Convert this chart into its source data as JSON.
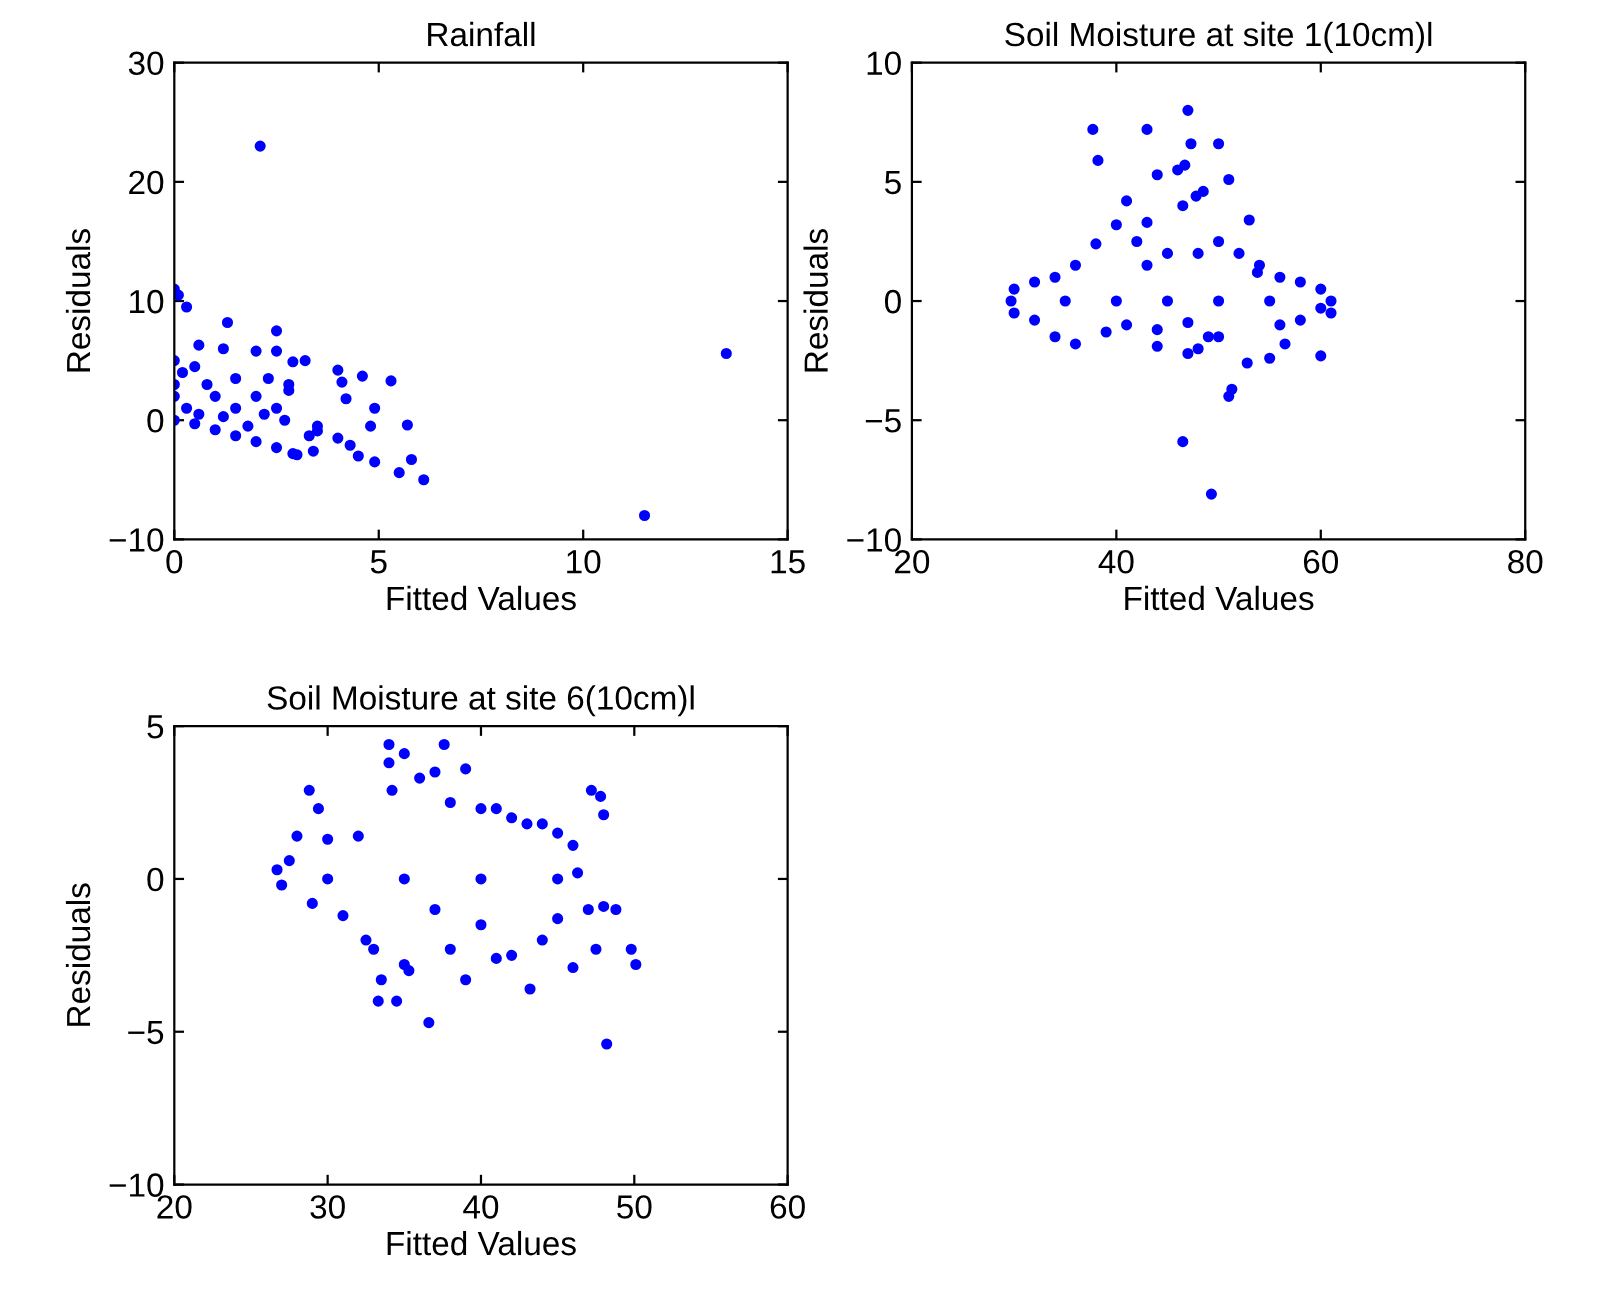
{
  "chart_data": [
    {
      "type": "scatter",
      "title": "Rainfall",
      "xlabel": "Fitted Values",
      "ylabel": "Residuals",
      "xlim": [
        0,
        15
      ],
      "ylim": [
        -10,
        30
      ],
      "xticks": [
        0,
        5,
        10,
        15
      ],
      "yticks": [
        -10,
        0,
        10,
        20,
        30
      ],
      "grid": false,
      "legend": false,
      "marker": "circle",
      "series": [
        {
          "color": "#0000ff",
          "x": [
            2.1,
            13.5,
            11.5,
            0,
            0.1,
            0.3,
            1.3,
            2.5,
            0.6,
            1.2,
            2,
            2.5,
            3.2,
            2.9,
            4,
            4.6,
            5.3,
            4.1,
            4.2,
            4.9,
            5.7,
            4.8,
            3.5,
            4,
            4.3,
            4.5,
            4.9,
            5.5,
            5.8,
            6.1,
            3.3,
            3.5,
            3,
            3.4,
            0,
            0.5,
            1,
            1.5,
            2,
            2.5,
            2.9,
            0,
            0,
            0,
            0.2,
            0.5,
            0.8,
            1,
            1.5,
            1.5,
            2,
            2.5,
            2.8,
            2.7,
            2.2,
            1.8,
            0.3,
            0.6,
            1.2,
            2.3,
            2.8
          ],
          "values": [
            23,
            5.6,
            -8,
            11,
            10.5,
            9.5,
            8.2,
            7.5,
            6.3,
            6,
            5.8,
            5.8,
            5,
            4.9,
            4.2,
            3.7,
            3.3,
            3.2,
            1.8,
            1,
            -0.4,
            -0.5,
            -0.5,
            -1.5,
            -2.1,
            -3,
            -3.5,
            -4.4,
            -3.3,
            -5,
            -1.3,
            -0.9,
            -2.9,
            -2.6,
            0,
            -0.3,
            -0.8,
            -1.3,
            -1.8,
            -2.3,
            -2.8,
            5,
            3,
            2,
            4,
            4.5,
            3,
            2,
            3.5,
            1,
            2,
            1,
            2.5,
            0,
            0.5,
            -0.5,
            1,
            0.5,
            0.3,
            3.5,
            3
          ]
        }
      ]
    },
    {
      "type": "scatter",
      "title": "Soil Moisture at site 1(10cm)l",
      "xlabel": "Fitted Values",
      "ylabel": "Residuals",
      "xlim": [
        20,
        80
      ],
      "ylim": [
        -10,
        10
      ],
      "xticks": [
        20,
        40,
        60,
        80
      ],
      "yticks": [
        -10,
        -5,
        0,
        5,
        10
      ],
      "grid": false,
      "legend": false,
      "marker": "circle",
      "series": [
        {
          "color": "#0000ff",
          "x": [
            29.7,
            30,
            30,
            32,
            32,
            34,
            34,
            36,
            36,
            37.7,
            38.2,
            38,
            39,
            40,
            41,
            41,
            43,
            43,
            44,
            44,
            46,
            46.5,
            47,
            47.3,
            46.7,
            47.8,
            48.5,
            47,
            47,
            46.5,
            48,
            49,
            49.3,
            50,
            51,
            51,
            51.3,
            53,
            52.8,
            53.8,
            55,
            56,
            58,
            60,
            61,
            60,
            58,
            56,
            54,
            52,
            50,
            48,
            45,
            43,
            42,
            44,
            50,
            56.5,
            60,
            61,
            55,
            50,
            45,
            40,
            35
          ],
          "values": [
            0,
            0.5,
            -0.5,
            0.8,
            -0.8,
            1,
            -1.5,
            1.5,
            -1.8,
            7.2,
            5.9,
            2.4,
            -1.3,
            3.2,
            4.2,
            -1,
            7.2,
            3.3,
            5.3,
            -1.9,
            5.5,
            4,
            8,
            6.6,
            5.7,
            4.4,
            4.6,
            -0.9,
            -2.2,
            -5.9,
            -2,
            -1.5,
            -8.1,
            6.6,
            5.1,
            -4,
            -3.7,
            3.4,
            -2.6,
            1.2,
            -2.4,
            -1,
            -0.8,
            -0.3,
            -0.5,
            0.5,
            0.8,
            1,
            1.5,
            2,
            2.5,
            2,
            2,
            1.5,
            2.5,
            -1.2,
            -1.5,
            -1.8,
            -2.3,
            0,
            0,
            0,
            0,
            0,
            0
          ]
        }
      ]
    },
    {
      "type": "scatter",
      "title": "Soil Moisture at site 6(10cm)l",
      "xlabel": "Fitted Values",
      "ylabel": "Residuals",
      "xlim": [
        20,
        60
      ],
      "ylim": [
        -10,
        5
      ],
      "xticks": [
        20,
        30,
        40,
        50,
        60
      ],
      "yticks": [
        -10,
        -5,
        0,
        5
      ],
      "grid": false,
      "legend": false,
      "marker": "circle",
      "series": [
        {
          "color": "#0000ff",
          "x": [
            26.7,
            27,
            27.5,
            28,
            28.8,
            29.4,
            29,
            30,
            31,
            32,
            32.5,
            33,
            33.5,
            33.3,
            34,
            34,
            34.2,
            34.5,
            35,
            35,
            35.3,
            36,
            36.6,
            37,
            37.6,
            37,
            38,
            38,
            39,
            39,
            40,
            40,
            41,
            41,
            42,
            42,
            43,
            43.2,
            44,
            44,
            45,
            45,
            46,
            46,
            46.3,
            47,
            47.2,
            47.8,
            48,
            47.5,
            48,
            48.8,
            48.2,
            49.8,
            50.1,
            45,
            40,
            35,
            30
          ],
          "values": [
            0.3,
            -0.2,
            0.6,
            1.4,
            2.9,
            2.3,
            -0.8,
            1.3,
            -1.2,
            1.4,
            -2,
            -2.3,
            -3.3,
            -4,
            4.4,
            3.8,
            2.9,
            -4,
            4.1,
            -2.8,
            -3,
            3.3,
            -4.7,
            -1,
            4.4,
            3.5,
            2.5,
            -2.3,
            3.6,
            -3.3,
            2.3,
            -1.5,
            2.3,
            -2.6,
            2,
            -2.5,
            1.8,
            -3.6,
            1.8,
            -2,
            1.5,
            -1.3,
            1.1,
            -2.9,
            0.2,
            -1,
            2.9,
            2.7,
            2.1,
            -2.3,
            -0.9,
            -1,
            -5.4,
            -2.3,
            -2.8,
            0,
            0,
            0,
            0
          ]
        }
      ]
    }
  ]
}
